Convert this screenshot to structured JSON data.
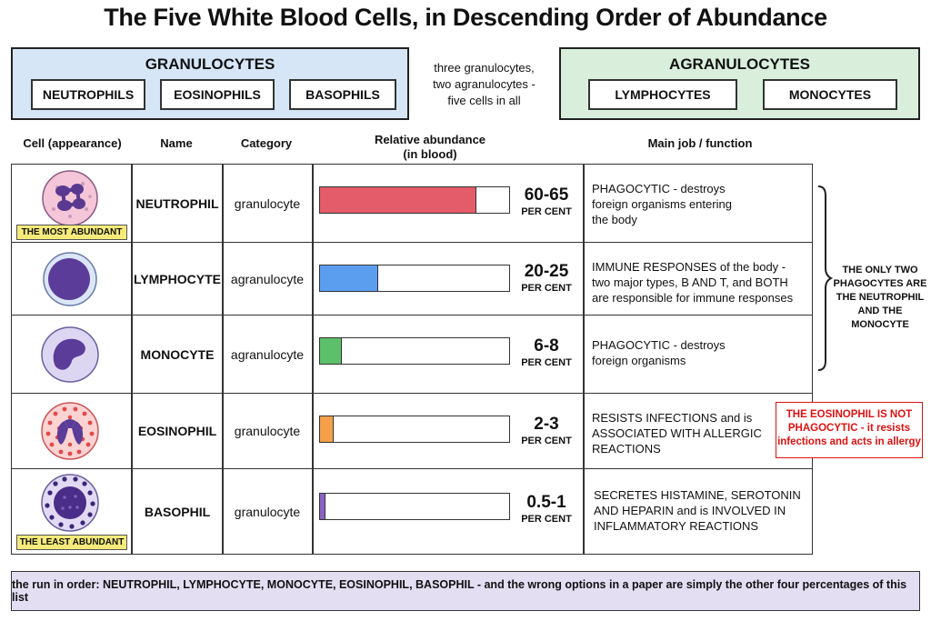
{
  "title": "The Five White Blood Cells, in Descending Order of Abundance",
  "granulocytes": {
    "title": "GRANULOCYTES",
    "items": [
      "NEUTROPHILS",
      "EOSINOPHILS",
      "BASOPHILS"
    ]
  },
  "middle_note": {
    "lines": [
      "three granulocytes,",
      "two agranulocytes -",
      "five cells in all"
    ]
  },
  "agranulocytes": {
    "title": "AGRANULOCYTES",
    "items": [
      "LYMPHOCYTES",
      "MONOCYTES"
    ]
  },
  "columns": {
    "appearance": "Cell (appearance)",
    "name": "Name",
    "category": "Category",
    "abundance_line1": "Relative abundance",
    "abundance_line2": "(in blood)",
    "function": "Main job / function"
  },
  "rows": [
    {
      "name": "NEUTROPHIL",
      "category": "granulocyte",
      "abundance": "60-65",
      "unit": "PER CENT",
      "bar_fraction": 0.825,
      "bar_color": "#e45c6a",
      "tag": "THE MOST ABUNDANT",
      "icon": "neutrophil-icon",
      "function_lines": [
        "PHAGOCYTIC - destroys",
        "foreign organisms entering",
        "the body"
      ]
    },
    {
      "name": "LYMPHOCYTE",
      "category": "agranulocyte",
      "abundance": "20-25",
      "unit": "PER CENT",
      "bar_fraction": 0.31,
      "bar_color": "#5b9ef0",
      "tag": "",
      "icon": "lymphocyte-icon",
      "function_lines": [
        "IMMUNE RESPONSES of the body -",
        "two major types, B AND T, and BOTH",
        "are responsible for immune responses"
      ]
    },
    {
      "name": "MONOCYTE",
      "category": "agranulocyte",
      "abundance": "6-8",
      "unit": "PER CENT",
      "bar_fraction": 0.115,
      "bar_color": "#5cc06a",
      "tag": "",
      "icon": "monocyte-icon",
      "function_lines": [
        "PHAGOCYTIC - destroys",
        "foreign organisms"
      ]
    },
    {
      "name": "EOSINOPHIL",
      "category": "granulocyte",
      "abundance": "2-3",
      "unit": "PER CENT",
      "bar_fraction": 0.07,
      "bar_color": "#f4a04a",
      "tag": "",
      "icon": "eosinophil-icon",
      "function_lines": [
        "RESISTS INFECTIONS and is",
        "ASSOCIATED WITH ALLERGIC",
        "REACTIONS"
      ]
    },
    {
      "name": "BASOPHIL",
      "category": "granulocyte",
      "abundance": "0.5-1",
      "unit": "PER CENT",
      "bar_fraction": 0.03,
      "bar_color": "#8a62c4",
      "tag": "THE LEAST ABUNDANT",
      "icon": "basophil-icon",
      "function_lines": [
        "SECRETES HISTAMINE, SEROTONIN",
        "AND HEPARIN and is INVOLVED IN",
        "INFLAMMATORY REACTIONS"
      ]
    }
  ],
  "side_note": {
    "lines": [
      "THE ONLY TWO",
      "PHAGOCYTES ARE",
      "THE NEUTROPHIL",
      "AND THE MONOCYTE"
    ]
  },
  "callout": {
    "lines": [
      "THE EOSINOPHIL IS NOT",
      "PHAGOCYTIC - it resists",
      "infections and acts in allergy"
    ],
    "color": "#dd1111"
  },
  "footer": "the run in order: NEUTROPHIL, LYMPHOCYTE, MONOCYTE, EOSINOPHIL, BASOPHIL - and the wrong options in a paper are simply the other four percentages of this list"
}
